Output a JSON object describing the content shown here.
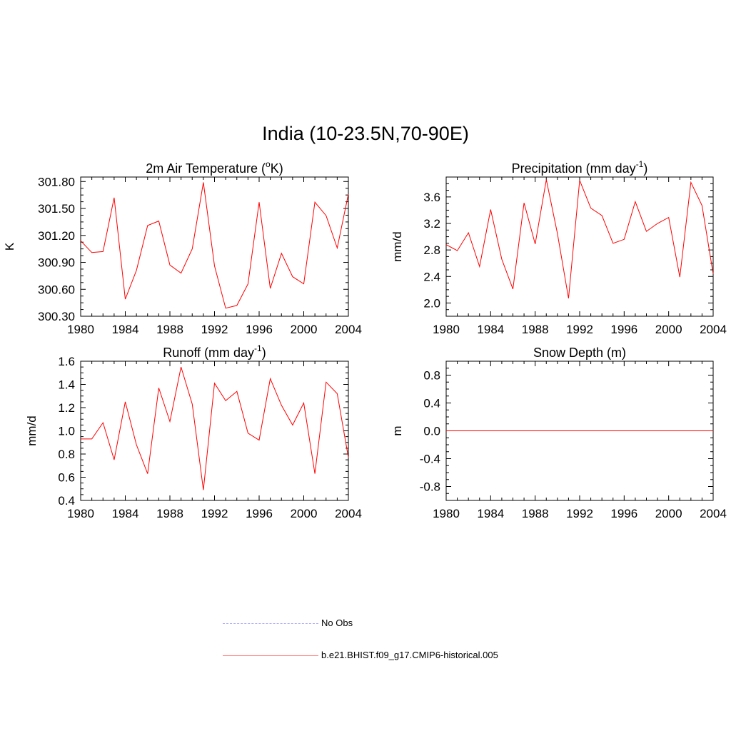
{
  "page": {
    "title": "India (10-23.5N,70-90E)"
  },
  "legend": [
    {
      "label": "No Obs",
      "color": "#aaaaff",
      "dash": "dashed"
    },
    {
      "label": "b.e21.BHIST.f09_g17.CMIP6-historical.005",
      "color": "#ff8080",
      "dash": "solid"
    }
  ],
  "series_color": "#ff0000",
  "chart_data": [
    {
      "type": "line",
      "title_main": "2m Air Temperature (",
      "title_sup_pre": "o",
      "title_rest": "K)",
      "ylabel": "K",
      "x": [
        1980,
        1981,
        1982,
        1983,
        1984,
        1985,
        1986,
        1987,
        1988,
        1989,
        1990,
        1991,
        1992,
        1993,
        1994,
        1995,
        1996,
        1997,
        1998,
        1999,
        2000,
        2001,
        2002,
        2003,
        2004
      ],
      "values": [
        301.14,
        301.01,
        301.02,
        301.62,
        300.49,
        300.81,
        301.31,
        301.36,
        300.87,
        300.78,
        301.05,
        301.79,
        300.86,
        300.39,
        300.42,
        300.66,
        301.57,
        300.61,
        301.0,
        300.74,
        300.66,
        301.57,
        301.42,
        301.06,
        301.66
      ],
      "xlim": [
        1980,
        2004
      ],
      "ylim": [
        300.3,
        301.85
      ],
      "xticks": [
        "1980",
        "1984",
        "1988",
        "1992",
        "1996",
        "2000",
        "2004"
      ],
      "yticks": [
        "300.30",
        "300.60",
        "300.90",
        "301.20",
        "301.50",
        "301.80"
      ]
    },
    {
      "type": "line",
      "title_main": "Precipitation (mm day",
      "title_sup": "-1",
      "title_rest": ")",
      "ylabel": "mm/d",
      "x": [
        1980,
        1981,
        1982,
        1983,
        1984,
        1985,
        1986,
        1987,
        1988,
        1989,
        1990,
        1991,
        1992,
        1993,
        1994,
        1995,
        1996,
        1997,
        1998,
        1999,
        2000,
        2001,
        2002,
        2003,
        2004
      ],
      "values": [
        2.88,
        2.79,
        3.06,
        2.55,
        3.41,
        2.66,
        2.21,
        3.51,
        2.89,
        3.86,
        3.05,
        2.07,
        3.85,
        3.43,
        3.32,
        2.9,
        2.96,
        3.53,
        3.08,
        3.2,
        3.29,
        2.39,
        3.82,
        3.47,
        2.44
      ],
      "xlim": [
        1980,
        2004
      ],
      "ylim": [
        1.8,
        3.9
      ],
      "xticks": [
        "1980",
        "1984",
        "1988",
        "1992",
        "1996",
        "2000",
        "2004"
      ],
      "yticks": [
        "2.0",
        "2.4",
        "2.8",
        "3.2",
        "3.6"
      ]
    },
    {
      "type": "line",
      "title_main": "Runoff (mm day",
      "title_sup": "-1",
      "title_rest": ")",
      "ylabel": "mm/d",
      "x": [
        1980,
        1981,
        1982,
        1983,
        1984,
        1985,
        1986,
        1987,
        1988,
        1989,
        1990,
        1991,
        1992,
        1993,
        1994,
        1995,
        1996,
        1997,
        1998,
        1999,
        2000,
        2001,
        2002,
        2003,
        2004
      ],
      "values": [
        0.93,
        0.93,
        1.07,
        0.75,
        1.25,
        0.88,
        0.63,
        1.37,
        1.08,
        1.55,
        1.23,
        0.49,
        1.41,
        1.26,
        1.34,
        0.98,
        0.92,
        1.45,
        1.22,
        1.05,
        1.24,
        0.63,
        1.42,
        1.32,
        0.77
      ],
      "xlim": [
        1980,
        2004
      ],
      "ylim": [
        0.4,
        1.6
      ],
      "xticks": [
        "1980",
        "1984",
        "1988",
        "1992",
        "1996",
        "2000",
        "2004"
      ],
      "yticks": [
        "0.4",
        "0.6",
        "0.8",
        "1.0",
        "1.2",
        "1.4",
        "1.6"
      ]
    },
    {
      "type": "line",
      "title_main": "Snow Depth (m)",
      "ylabel": "m",
      "x": [
        1980,
        1981,
        1982,
        1983,
        1984,
        1985,
        1986,
        1987,
        1988,
        1989,
        1990,
        1991,
        1992,
        1993,
        1994,
        1995,
        1996,
        1997,
        1998,
        1999,
        2000,
        2001,
        2002,
        2003,
        2004
      ],
      "values": [
        0,
        0,
        0,
        0,
        0,
        0,
        0,
        0,
        0,
        0,
        0,
        0,
        0,
        0,
        0,
        0,
        0,
        0,
        0,
        0,
        0,
        0,
        0,
        0,
        0
      ],
      "xlim": [
        1980,
        2004
      ],
      "ylim": [
        -1.0,
        1.0
      ],
      "xticks": [
        "1980",
        "1984",
        "1988",
        "1992",
        "1996",
        "2000",
        "2004"
      ],
      "yticks": [
        "-0.8",
        "-0.4",
        "0.0",
        "0.4",
        "0.8"
      ]
    }
  ]
}
